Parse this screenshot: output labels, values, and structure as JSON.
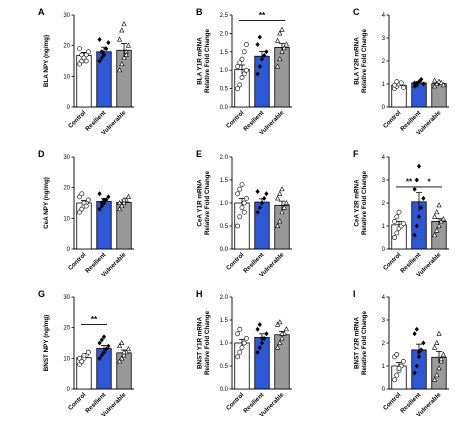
{
  "colors": {
    "control": "#ffffff",
    "resilient": "#2e57d6",
    "vulnerable": "#999999",
    "axis": "#000000"
  },
  "chart_data": [
    {
      "letter": "A",
      "type": "bar",
      "ylabel": [
        "BLA NPY (ng/mg)"
      ],
      "ylim": [
        0,
        30
      ],
      "yticks": [
        0,
        10,
        20,
        30
      ],
      "categories": [
        "Control",
        "Resilient",
        "Vulnerable"
      ],
      "values": [
        16.8,
        18.0,
        18.5
      ],
      "errors": [
        1.0,
        1.5,
        2.2
      ],
      "points": [
        [
          14,
          15,
          16,
          17,
          18,
          19,
          17,
          16,
          15
        ],
        [
          15,
          16,
          17,
          19,
          21,
          22,
          18,
          17
        ],
        [
          12,
          14,
          16,
          18,
          20,
          22,
          25,
          27,
          17
        ]
      ],
      "sig": []
    },
    {
      "letter": "B",
      "type": "bar",
      "ylabel": [
        "BLA Y1R mRNA",
        "Relative Fold Change"
      ],
      "ylim": [
        0,
        2.5
      ],
      "yticks": [
        0.0,
        0.5,
        1.0,
        1.5,
        2.0,
        2.5
      ],
      "categories": [
        "Control",
        "Resilient",
        "Vulnerable"
      ],
      "values": [
        1.02,
        1.38,
        1.62
      ],
      "errors": [
        0.12,
        0.13,
        0.11
      ],
      "points": [
        [
          0.5,
          0.6,
          0.8,
          0.9,
          1.0,
          1.1,
          1.2,
          1.3,
          1.5,
          1.7
        ],
        [
          0.9,
          1.1,
          1.3,
          1.4,
          1.5,
          1.7,
          1.9
        ],
        [
          1.1,
          1.3,
          1.5,
          1.6,
          1.7,
          1.8,
          2.0,
          2.1
        ]
      ],
      "sig": [
        {
          "label": "**",
          "from": 0,
          "to": 2,
          "y": 2.35
        }
      ]
    },
    {
      "letter": "C",
      "type": "bar",
      "ylabel": [
        "BLA Y2R mRNA",
        "Relative Fold Change"
      ],
      "ylim": [
        0,
        4
      ],
      "yticks": [
        0,
        1,
        2,
        3,
        4
      ],
      "categories": [
        "Control",
        "Resilient",
        "Vulnerable"
      ],
      "values": [
        0.95,
        1.05,
        1.02
      ],
      "errors": [
        0.06,
        0.06,
        0.05
      ],
      "points": [
        [
          0.8,
          0.9,
          1.0,
          1.05,
          0.85,
          0.95,
          1.1
        ],
        [
          0.9,
          1.0,
          1.1,
          1.2,
          1.0,
          1.05,
          0.95
        ],
        [
          0.9,
          1.0,
          1.1,
          1.05,
          0.95,
          1.15
        ]
      ],
      "sig": []
    },
    {
      "letter": "D",
      "type": "bar",
      "ylabel": [
        "CeA NPY (ng/mg)"
      ],
      "ylim": [
        0,
        30
      ],
      "yticks": [
        0,
        10,
        20,
        30
      ],
      "categories": [
        "Control",
        "Resilient",
        "Vulnerable"
      ],
      "values": [
        15.0,
        15.5,
        15.2
      ],
      "errors": [
        0.8,
        0.9,
        0.8
      ],
      "points": [
        [
          12,
          13,
          14,
          15,
          16,
          17,
          18,
          15,
          14
        ],
        [
          13,
          14,
          15,
          16,
          17,
          18,
          15,
          16
        ],
        [
          13,
          14,
          15,
          16,
          17,
          15,
          14,
          16
        ]
      ],
      "sig": []
    },
    {
      "letter": "E",
      "type": "bar",
      "ylabel": [
        "CeA Y1R mRNA",
        "Relative Fold Change"
      ],
      "ylim": [
        0,
        2.0
      ],
      "yticks": [
        0.0,
        0.5,
        1.0,
        1.5,
        2.0
      ],
      "categories": [
        "Control",
        "Resilient",
        "Vulnerable"
      ],
      "values": [
        1.0,
        1.02,
        0.95
      ],
      "errors": [
        0.1,
        0.07,
        0.09
      ],
      "points": [
        [
          0.5,
          0.7,
          0.9,
          1.0,
          1.1,
          1.2,
          1.3,
          1.4,
          0.8
        ],
        [
          0.8,
          0.9,
          1.0,
          1.1,
          1.2,
          1.25
        ],
        [
          0.5,
          0.6,
          0.8,
          0.9,
          1.0,
          1.1,
          1.2,
          1.3
        ]
      ],
      "sig": []
    },
    {
      "letter": "F",
      "type": "bar",
      "ylabel": [
        "CeA Y2R mRNA",
        "Relative Fold Change"
      ],
      "ylim": [
        0,
        4
      ],
      "yticks": [
        0,
        1,
        2,
        3,
        4
      ],
      "categories": [
        "Control",
        "Resilient",
        "Vulnerable"
      ],
      "values": [
        1.05,
        2.05,
        1.2
      ],
      "errors": [
        0.15,
        0.4,
        0.12
      ],
      "points": [
        [
          0.5,
          0.7,
          0.9,
          1.0,
          1.1,
          1.2,
          1.4,
          1.6
        ],
        [
          0.6,
          1.0,
          1.4,
          1.8,
          2.2,
          2.6,
          3.0,
          3.6
        ],
        [
          0.6,
          0.8,
          1.0,
          1.2,
          1.3,
          1.4,
          1.6,
          1.9
        ]
      ],
      "sig": [
        {
          "label": "**",
          "from": 0,
          "to": 1,
          "y": 2.7
        },
        {
          "label": "*",
          "from": 1,
          "to": 2,
          "y": 2.7
        }
      ]
    },
    {
      "letter": "G",
      "type": "bar",
      "ylabel": [
        "BNST NPY (ng/mg)"
      ],
      "ylim": [
        0,
        30
      ],
      "yticks": [
        0,
        10,
        20,
        30
      ],
      "categories": [
        "Control",
        "Resilient",
        "Vulnerable"
      ],
      "values": [
        10.2,
        13.2,
        11.8
      ],
      "errors": [
        0.6,
        1.0,
        0.9
      ],
      "points": [
        [
          8,
          9,
          10,
          11,
          12,
          10,
          9,
          11
        ],
        [
          10,
          11,
          12,
          13,
          14,
          15,
          16,
          17
        ],
        [
          9,
          10,
          11,
          12,
          13,
          14,
          15,
          12
        ]
      ],
      "sig": [
        {
          "label": "**",
          "from": 0,
          "to": 1,
          "y": 21
        }
      ]
    },
    {
      "letter": "H",
      "type": "bar",
      "ylabel": [
        "BNST Y1R mRNA",
        "Relative Fold Change"
      ],
      "ylim": [
        0,
        2.0
      ],
      "yticks": [
        0.0,
        0.5,
        1.0,
        1.5,
        2.0
      ],
      "categories": [
        "Control",
        "Resilient",
        "Vulnerable"
      ],
      "values": [
        1.0,
        1.12,
        1.18
      ],
      "errors": [
        0.08,
        0.08,
        0.07
      ],
      "points": [
        [
          0.7,
          0.8,
          0.9,
          1.0,
          1.1,
          1.2,
          1.3
        ],
        [
          0.8,
          0.9,
          1.0,
          1.1,
          1.2,
          1.3,
          1.4,
          1.1
        ],
        [
          0.9,
          1.0,
          1.1,
          1.2,
          1.3,
          1.4,
          1.45,
          1.2
        ]
      ],
      "sig": []
    },
    {
      "letter": "I",
      "type": "bar",
      "ylabel": [
        "BNST Y2R mRNA",
        "Relative Fold Change"
      ],
      "ylim": [
        0,
        4
      ],
      "yticks": [
        0,
        1,
        2,
        3,
        4
      ],
      "categories": [
        "Control",
        "Resilient",
        "Vulnerable"
      ],
      "values": [
        1.0,
        1.7,
        1.38
      ],
      "errors": [
        0.15,
        0.25,
        0.25
      ],
      "points": [
        [
          0.4,
          0.6,
          0.8,
          1.0,
          1.2,
          1.4,
          1.5,
          0.9
        ],
        [
          0.7,
          1.0,
          1.4,
          1.7,
          2.0,
          2.4,
          2.6,
          1.6
        ],
        [
          0.4,
          0.6,
          0.9,
          1.2,
          1.5,
          1.8,
          2.0,
          2.4,
          1.3
        ]
      ],
      "sig": []
    }
  ]
}
